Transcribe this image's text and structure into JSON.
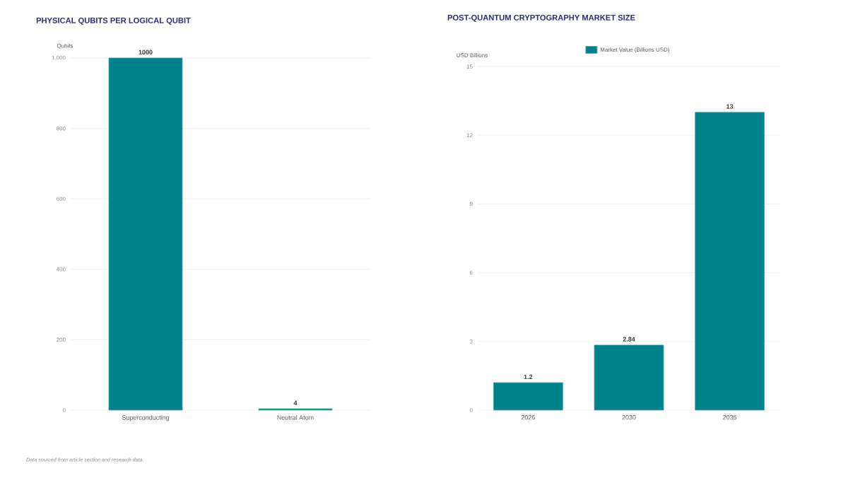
{
  "chart_data": [
    {
      "type": "bar",
      "title": "PHYSICAL QUBITS PER LOGICAL QUBIT",
      "ylabel": "Qubits",
      "categories": [
        "Superconducting",
        "Neutral Atom"
      ],
      "values": [
        1000,
        4
      ],
      "color": "#00828a",
      "ylim": [
        0,
        1000
      ],
      "yticks": [
        0,
        200,
        400,
        600,
        800,
        {
          "value": 1000,
          "label": "1,000"
        }
      ],
      "grid": "y",
      "data_labels": true,
      "annotations": [
        "Data sourced from article section and research data."
      ]
    },
    {
      "type": "bar",
      "title": "POST-QUANTUM CRYPTOGRAPHY MARKET SIZE",
      "ylabel": "USD Billions",
      "categories": [
        "2026",
        "2030",
        "2035"
      ],
      "series": [
        {
          "name": "Market Value (Billions USD)",
          "color": "#00828a",
          "values": [
            1.2,
            2.84,
            13
          ]
        }
      ],
      "ylim": [
        0,
        15
      ],
      "yticks": [
        0,
        3,
        6,
        9,
        12,
        15
      ],
      "grid": "y",
      "legend": "top",
      "data_labels": true
    }
  ]
}
